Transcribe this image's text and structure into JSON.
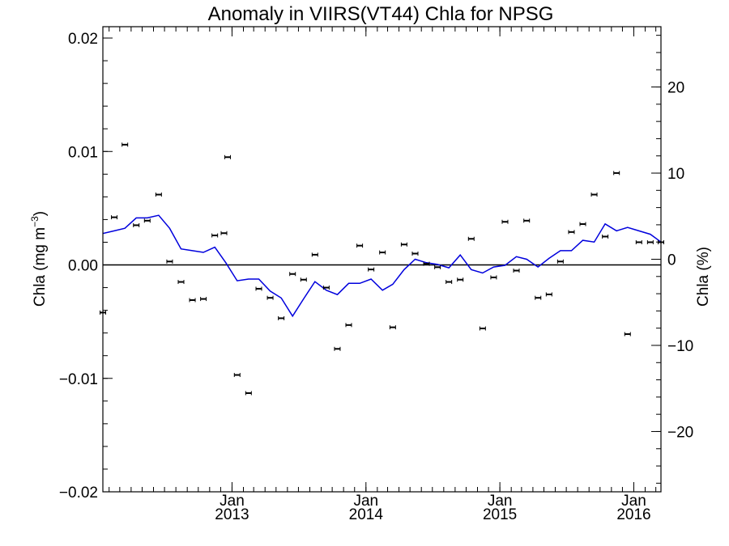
{
  "chart_data": {
    "type": "scatter",
    "title": "Anomaly in VIIRS(VT44) Chla for NPSG",
    "ylabel_left": "Chla (mg m",
    "ylabel_left_sup": "−3",
    "ylabel_left_end": ")",
    "ylabel_right": "Chla (%)",
    "xlim": [
      "2012-01-15",
      "2016-03-15"
    ],
    "ylim_left": [
      -0.02,
      0.021
    ],
    "ylim_right": [
      -27,
      27
    ],
    "grid": false,
    "x_ticks": [
      {
        "date": "2013-01-01",
        "month": "Jan",
        "year": "2013"
      },
      {
        "date": "2014-01-01",
        "month": "Jan",
        "year": "2014"
      },
      {
        "date": "2015-01-01",
        "month": "Jan",
        "year": "2015"
      },
      {
        "date": "2016-01-01",
        "month": "Jan",
        "year": "2016"
      }
    ],
    "y_ticks_left": [
      {
        "value": 0.02,
        "label": "0.02"
      },
      {
        "value": 0.01,
        "label": "0.01"
      },
      {
        "value": 0.0,
        "label": "0.00"
      },
      {
        "value": -0.01,
        "label": "−0.01"
      },
      {
        "value": -0.02,
        "label": "−0.02"
      }
    ],
    "y_ticks_right": [
      {
        "value": 20,
        "label": "20"
      },
      {
        "value": 10,
        "label": "10"
      },
      {
        "value": 0,
        "label": "0"
      },
      {
        "value": -10,
        "label": "−10"
      },
      {
        "value": -20,
        "label": "−20"
      }
    ],
    "series": [
      {
        "kind": "points_with_errorbars",
        "axis": "left",
        "x": [
          "2012-01-15",
          "2012-02-15",
          "2012-03-15",
          "2012-04-15",
          "2012-05-15",
          "2012-06-15",
          "2012-07-15",
          "2012-08-15",
          "2012-09-15",
          "2012-10-15",
          "2012-11-15",
          "2012-12-10",
          "2012-12-20",
          "2013-01-15",
          "2013-02-15",
          "2013-03-15",
          "2013-04-15",
          "2013-05-15",
          "2013-06-15",
          "2013-07-15",
          "2013-08-15",
          "2013-09-15",
          "2013-10-15",
          "2013-11-15",
          "2013-12-15",
          "2014-01-15",
          "2014-02-15",
          "2014-03-15",
          "2014-04-15",
          "2014-05-15",
          "2014-06-15",
          "2014-07-15",
          "2014-08-15",
          "2014-09-15",
          "2014-10-15",
          "2014-11-15",
          "2014-12-15",
          "2015-01-15",
          "2015-02-15",
          "2015-03-15",
          "2015-04-15",
          "2015-05-15",
          "2015-06-15",
          "2015-07-15",
          "2015-08-15",
          "2015-09-15",
          "2015-10-15",
          "2015-11-15",
          "2015-12-15",
          "2016-01-15",
          "2016-02-15",
          "2016-03-15"
        ],
        "y": [
          -0.0042,
          0.0042,
          0.0106,
          0.0035,
          0.0039,
          0.0062,
          0.0003,
          -0.0015,
          -0.0031,
          -0.003,
          0.0026,
          0.0028,
          0.0095,
          -0.0097,
          -0.0113,
          -0.0021,
          -0.0029,
          -0.0047,
          -0.0008,
          -0.0013,
          0.0009,
          -0.002,
          -0.0074,
          -0.0053,
          0.0017,
          -0.0004,
          0.0011,
          -0.0055,
          0.0018,
          0.001,
          0.0001,
          -0.0002,
          -0.0015,
          -0.0013,
          0.0023,
          -0.0056,
          -0.0011,
          0.0038,
          -0.0005,
          0.0039,
          -0.0029,
          -0.0026,
          0.0003,
          0.0029,
          0.0036,
          0.0062,
          0.0025,
          0.0081,
          -0.0061,
          0.002,
          0.002,
          0.002
        ]
      },
      {
        "kind": "line",
        "axis": "right",
        "color": "#0000dd",
        "x": [
          "2012-01-15",
          "2012-02-15",
          "2012-03-15",
          "2012-04-15",
          "2012-05-15",
          "2012-06-15",
          "2012-07-15",
          "2012-08-15",
          "2012-09-15",
          "2012-10-15",
          "2012-11-15",
          "2012-12-15",
          "2013-01-15",
          "2013-02-15",
          "2013-03-15",
          "2013-04-15",
          "2013-05-15",
          "2013-06-15",
          "2013-07-15",
          "2013-08-15",
          "2013-09-15",
          "2013-10-15",
          "2013-11-15",
          "2013-12-15",
          "2014-01-15",
          "2014-02-15",
          "2014-03-15",
          "2014-04-15",
          "2014-05-15",
          "2014-06-15",
          "2014-07-15",
          "2014-08-15",
          "2014-09-15",
          "2014-10-15",
          "2014-11-15",
          "2014-12-15",
          "2015-01-15",
          "2015-02-15",
          "2015-03-15",
          "2015-04-15",
          "2015-05-15",
          "2015-06-15",
          "2015-07-15",
          "2015-08-15",
          "2015-09-15",
          "2015-10-15",
          "2015-11-15",
          "2015-12-15",
          "2016-01-15",
          "2016-02-15",
          "2016-03-15"
        ],
        "y": [
          3.0,
          3.3,
          3.6,
          4.8,
          4.8,
          5.1,
          3.6,
          1.2,
          1.0,
          0.8,
          1.4,
          -0.4,
          -2.5,
          -2.3,
          -2.3,
          -3.7,
          -4.5,
          -6.6,
          -4.6,
          -2.6,
          -3.6,
          -4.1,
          -2.8,
          -2.8,
          -2.3,
          -3.6,
          -2.9,
          -1.2,
          0.0,
          -0.4,
          -0.6,
          -1.0,
          0.5,
          -1.2,
          -1.6,
          -0.9,
          -0.7,
          0.3,
          0.0,
          -0.9,
          0.1,
          1.0,
          1.0,
          2.2,
          2.0,
          4.1,
          3.3,
          3.7,
          3.3,
          2.9,
          2.0
        ]
      }
    ]
  }
}
